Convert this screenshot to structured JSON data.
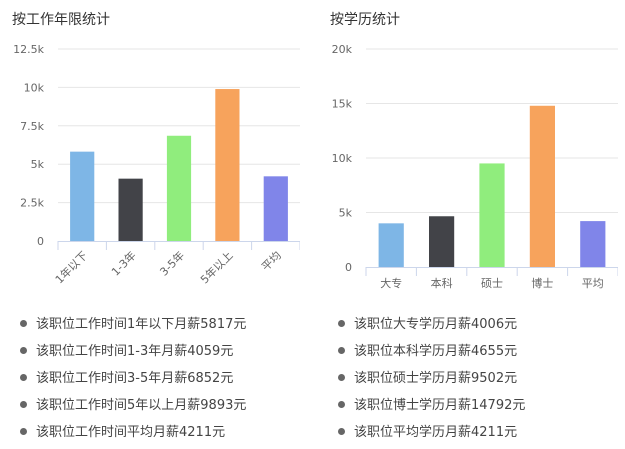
{
  "colors": {
    "blue": "#7EB6E6",
    "dark": "#424348",
    "green": "#90ED7D",
    "orange": "#F7A35C",
    "purple": "#8085E9",
    "axis": "#CCD6EB",
    "grid": "#E6E6E6",
    "tick_text": "#666666"
  },
  "icons": {
    "bullet": "bullet-dot-icon"
  },
  "chart_data": [
    {
      "type": "bar",
      "title": "按工作年限统计",
      "categories": [
        "1年以下",
        "1-3年",
        "3-5年",
        "5年以上",
        "平均"
      ],
      "values": [
        5817,
        4059,
        6852,
        9893,
        4211
      ],
      "bar_colors": [
        "#7EB6E6",
        "#424348",
        "#90ED7D",
        "#F7A35C",
        "#8085E9"
      ],
      "yticks": [
        0,
        2500,
        5000,
        7500,
        10000,
        12500
      ],
      "ytick_labels": [
        "0",
        "2.5k",
        "5k",
        "7.5k",
        "10k",
        "12.5k"
      ],
      "ylim": [
        0,
        12500
      ],
      "grid": true,
      "legend": "none",
      "xlabel_rotation": "-45deg"
    },
    {
      "type": "bar",
      "title": "按学历统计",
      "categories": [
        "大专",
        "本科",
        "硕士",
        "博士",
        "平均"
      ],
      "values": [
        4006,
        4655,
        9502,
        14792,
        4211
      ],
      "bar_colors": [
        "#7EB6E6",
        "#424348",
        "#90ED7D",
        "#F7A35C",
        "#8085E9"
      ],
      "yticks": [
        0,
        5000,
        10000,
        15000,
        20000
      ],
      "ytick_labels": [
        "0",
        "5k",
        "10k",
        "15k",
        "20k"
      ],
      "ylim": [
        0,
        20000
      ],
      "grid": true,
      "legend": "none",
      "xlabel_rotation": "0deg"
    }
  ],
  "left_stats": [
    "该职位工作时间1年以下月薪5817元",
    "该职位工作时间1-3年月薪4059元",
    "该职位工作时间3-5年月薪6852元",
    "该职位工作时间5年以上月薪9893元",
    "该职位工作时间平均月薪4211元"
  ],
  "right_stats": [
    "该职位大专学历月薪4006元",
    "该职位本科学历月薪4655元",
    "该职位硕士学历月薪9502元",
    "该职位博士学历月薪14792元",
    "该职位平均学历月薪4211元"
  ]
}
